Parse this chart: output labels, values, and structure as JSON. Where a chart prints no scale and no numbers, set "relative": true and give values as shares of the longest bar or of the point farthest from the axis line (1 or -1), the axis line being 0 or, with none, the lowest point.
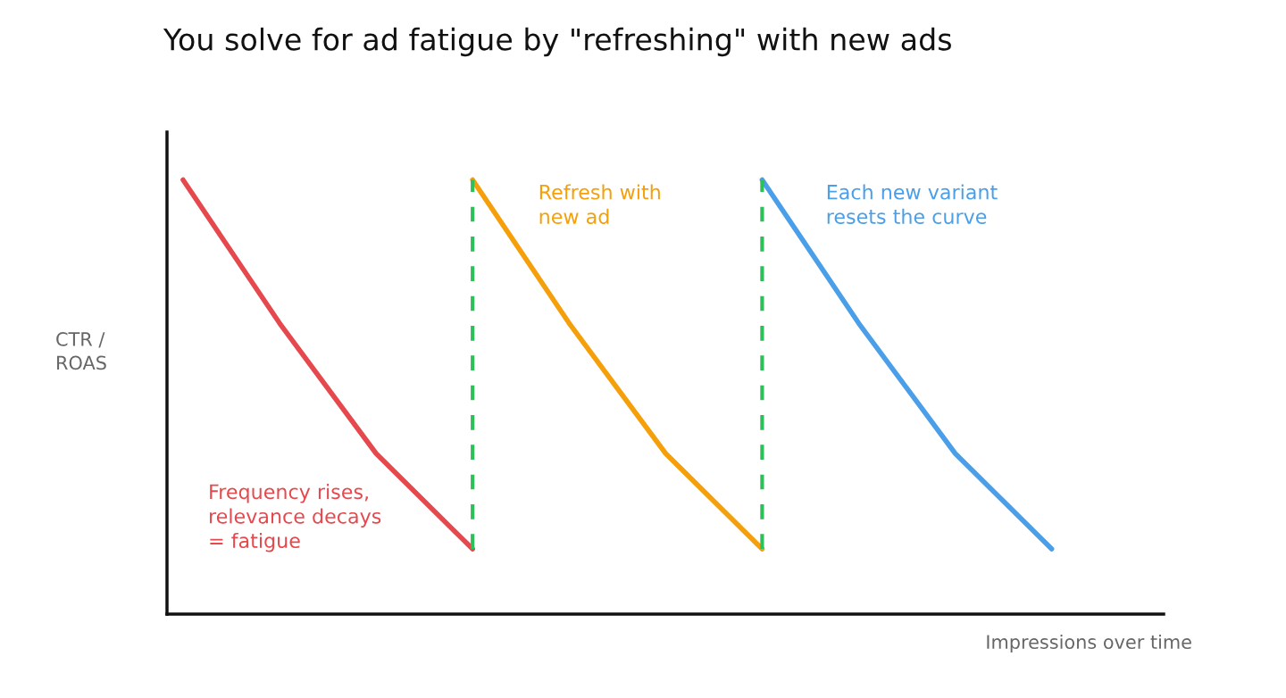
{
  "chart_data": {
    "type": "line",
    "title": "You solve for ad fatigue by \"refreshing\" with new ads",
    "xlabel": "Impressions over time",
    "ylabel": "CTR /\nROAS",
    "relative": true,
    "categories": [
      null,
      null,
      null,
      null,
      null,
      null,
      null,
      null,
      null,
      null
    ],
    "series": [
      {
        "color": "#e5484d",
        "values": [
          1,
          0.67,
          0.37,
          0.15,
          null,
          null,
          null,
          null,
          null,
          null
        ]
      },
      {
        "color": "#f59f0b",
        "values": [
          null,
          null,
          null,
          1,
          0.67,
          0.37,
          0.15,
          null,
          null,
          null
        ]
      },
      {
        "color": "#4a9fe8",
        "values": [
          null,
          null,
          null,
          null,
          null,
          null,
          1,
          0.67,
          0.37,
          0.15
        ]
      }
    ],
    "annotations": [
      "Frequency rises,\nrelevance decays\n= fatigue",
      "Refresh with\nnew ad",
      "Each new variant\nresets the curve"
    ],
    "legend": false,
    "marker": "none",
    "line_style": "solid"
  }
}
